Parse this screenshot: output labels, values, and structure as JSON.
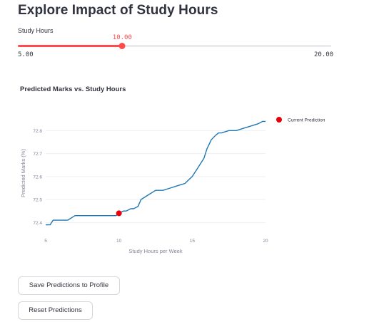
{
  "page": {
    "title": "Explore Impact of Study Hours"
  },
  "slider": {
    "label": "Study Hours",
    "value": 10.0,
    "value_text": "10.00",
    "min": 5.0,
    "max": 20.0,
    "min_text": "5.00",
    "max_text": "20.00",
    "accent_color": "#ff4b4b"
  },
  "chart_title": "Predicted Marks vs. Study Hours",
  "chart_data": {
    "type": "line",
    "xlabel": "Study Hours per Week",
    "ylabel": "Predicted Marks (%)",
    "xlim": [
      5,
      20
    ],
    "ylim": [
      72.37,
      72.86
    ],
    "xticks": [
      5,
      10,
      15,
      20
    ],
    "yticks": [
      72.4,
      72.5,
      72.6,
      72.7,
      72.8
    ],
    "grid": true,
    "line_color": "#1f77b4",
    "series": [
      {
        "x": [
          5.0,
          5.3,
          5.5,
          6.0,
          6.5,
          7.0,
          7.5,
          8.0,
          8.5,
          9.0,
          9.5,
          9.8,
          10.0,
          10.3,
          10.5,
          10.8,
          11.0,
          11.3,
          11.5,
          12.0,
          12.5,
          13.0,
          13.5,
          14.0,
          14.5,
          15.0,
          15.3,
          15.6,
          15.8,
          16.0,
          16.3,
          16.6,
          16.8,
          17.0,
          17.5,
          18.0,
          18.5,
          19.0,
          19.5,
          19.8,
          20.0
        ],
        "y": [
          72.39,
          72.39,
          72.41,
          72.41,
          72.41,
          72.43,
          72.43,
          72.43,
          72.43,
          72.43,
          72.43,
          72.43,
          72.44,
          72.45,
          72.45,
          72.46,
          72.46,
          72.47,
          72.5,
          72.52,
          72.54,
          72.54,
          72.55,
          72.56,
          72.57,
          72.6,
          72.63,
          72.66,
          72.68,
          72.72,
          72.76,
          72.78,
          72.79,
          72.79,
          72.8,
          72.8,
          72.81,
          72.82,
          72.83,
          72.84,
          72.84
        ]
      }
    ],
    "current_point": {
      "x": 10.0,
      "y": 72.44,
      "color": "#e8000b"
    },
    "legend": {
      "position": "right",
      "label": "Current Prediction"
    }
  },
  "buttons": {
    "save_label": "Save Predictions to Profile",
    "reset_label": "Reset Predictions"
  }
}
